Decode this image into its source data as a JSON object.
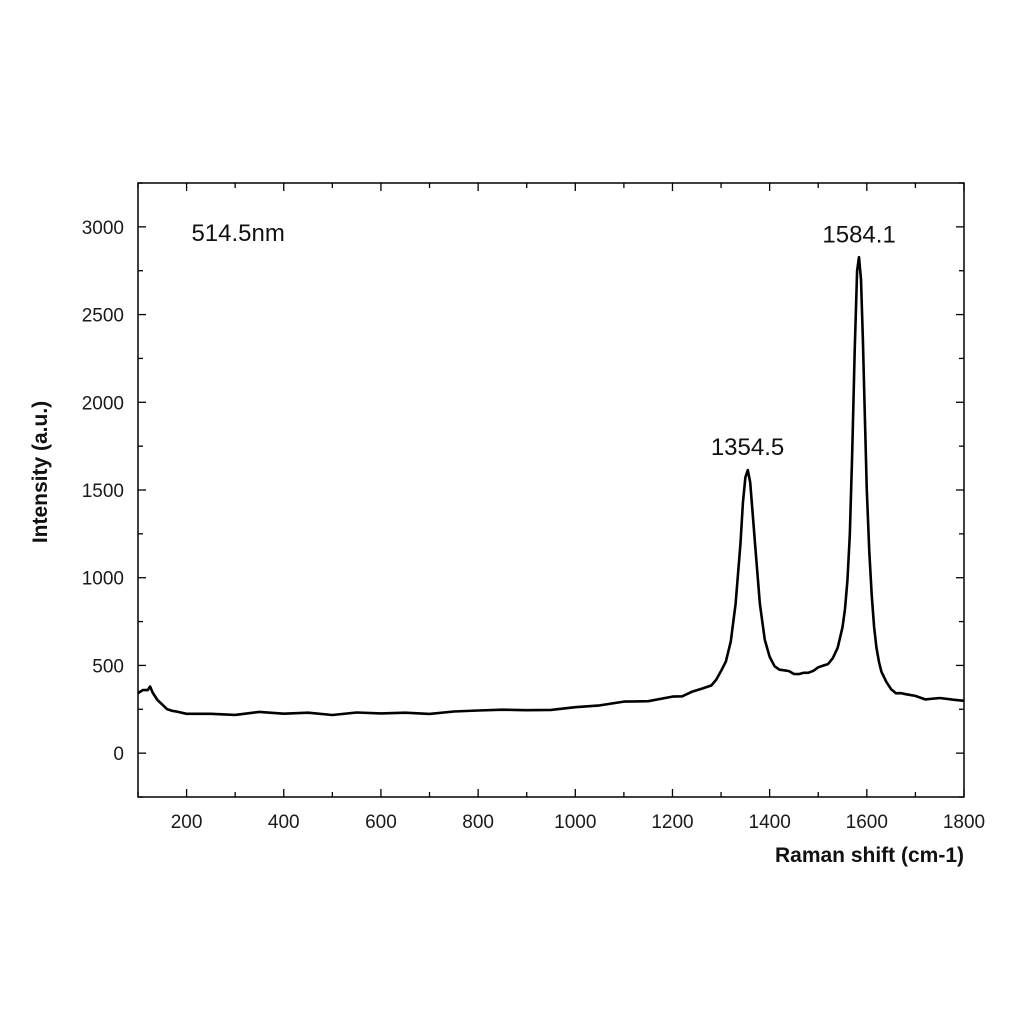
{
  "chart_data": {
    "type": "line",
    "title": "",
    "xlabel": "Raman shift (cm-1)",
    "ylabel": "Intensity (a.u.)",
    "xlim": [
      100,
      1800
    ],
    "ylim": [
      -250,
      3250
    ],
    "x_ticks": [
      200,
      400,
      600,
      800,
      1000,
      1200,
      1400,
      1600,
      1800
    ],
    "y_ticks": [
      0,
      500,
      1000,
      1500,
      2000,
      2500,
      3000
    ],
    "grid": false,
    "legend": "none",
    "line_color": "#000000",
    "annotations": [
      {
        "text": "514.5nm",
        "x": 210,
        "y": 2920
      },
      {
        "text": "1354.5",
        "x": 1354.5,
        "y": 1700
      },
      {
        "text": "1584.1",
        "x": 1584.1,
        "y": 2910
      }
    ],
    "series": [
      {
        "x": [
          100,
          110,
          120,
          125,
          130,
          140,
          150,
          160,
          170,
          180,
          200,
          250,
          300,
          350,
          400,
          450,
          500,
          550,
          600,
          650,
          700,
          750,
          800,
          850,
          900,
          950,
          1000,
          1050,
          1100,
          1150,
          1200,
          1220,
          1240,
          1260,
          1280,
          1290,
          1300,
          1310,
          1320,
          1330,
          1340,
          1345,
          1350,
          1355,
          1360,
          1365,
          1370,
          1380,
          1390,
          1400,
          1410,
          1420,
          1430,
          1440,
          1450,
          1460,
          1470,
          1480,
          1490,
          1500,
          1510,
          1520,
          1530,
          1540,
          1550,
          1555,
          1560,
          1565,
          1570,
          1575,
          1580,
          1584,
          1588,
          1592,
          1596,
          1600,
          1605,
          1610,
          1615,
          1620,
          1625,
          1630,
          1640,
          1650,
          1660,
          1670,
          1680,
          1700,
          1720,
          1750,
          1780,
          1800
        ],
        "y": [
          340,
          355,
          365,
          370,
          355,
          300,
          270,
          250,
          240,
          235,
          230,
          225,
          222,
          225,
          228,
          230,
          226,
          224,
          226,
          228,
          232,
          236,
          240,
          244,
          248,
          252,
          258,
          270,
          290,
          305,
          320,
          330,
          345,
          365,
          395,
          420,
          460,
          520,
          640,
          850,
          1200,
          1420,
          1580,
          1610,
          1540,
          1380,
          1180,
          850,
          650,
          550,
          500,
          480,
          465,
          460,
          455,
          455,
          458,
          462,
          470,
          480,
          495,
          515,
          545,
          600,
          720,
          820,
          980,
          1250,
          1700,
          2300,
          2750,
          2820,
          2700,
          2350,
          1900,
          1500,
          1150,
          900,
          720,
          600,
          520,
          460,
          400,
          370,
          350,
          340,
          332,
          322,
          315,
          310,
          305,
          300
        ]
      }
    ]
  }
}
